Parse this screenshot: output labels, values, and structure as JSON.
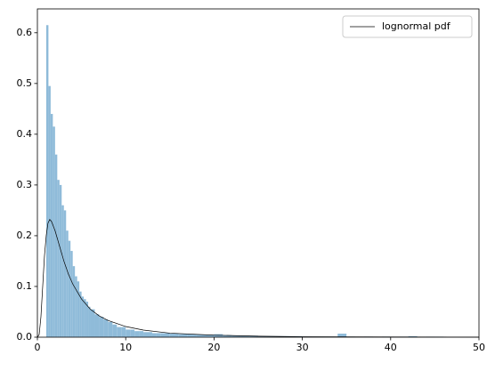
{
  "chart_data": {
    "type": "histogram",
    "bins": [
      1.0,
      1.25,
      1.5,
      1.75,
      2.0,
      2.25,
      2.5,
      2.75,
      3.0,
      3.25,
      3.5,
      3.75,
      4.0,
      4.25,
      4.5,
      4.75,
      5.0,
      5.25,
      5.5,
      5.75,
      6.0,
      6.5,
      7.0,
      7.5,
      8.0,
      8.5,
      9.0,
      9.5,
      10.0,
      10.5,
      11.0,
      11.5,
      12.0,
      12.5,
      13.0,
      13.5,
      14.0,
      15,
      16,
      17,
      18,
      19,
      20,
      21,
      22,
      23,
      24,
      25,
      26,
      27,
      28,
      29,
      30,
      31,
      32,
      33,
      34,
      35,
      36,
      37,
      38,
      39,
      40,
      41,
      42,
      43,
      44,
      45,
      46
    ],
    "values": [
      0.615,
      0.495,
      0.44,
      0.415,
      0.36,
      0.31,
      0.3,
      0.26,
      0.25,
      0.21,
      0.19,
      0.17,
      0.14,
      0.12,
      0.11,
      0.09,
      0.08,
      0.075,
      0.07,
      0.06,
      0.055,
      0.045,
      0.04,
      0.035,
      0.03,
      0.025,
      0.02,
      0.02,
      0.015,
      0.015,
      0.012,
      0.012,
      0.01,
      0.01,
      0.008,
      0.008,
      0.008,
      0.007,
      0.006,
      0.006,
      0.005,
      0.005,
      0.006,
      0.004,
      0.003,
      0.003,
      0.003,
      0.002,
      0.002,
      0.002,
      0.002,
      0.002,
      0.001,
      0.001,
      0.001,
      0.001,
      0.007,
      0.001,
      0,
      0.001,
      0,
      0.001,
      0,
      0.001,
      0.002,
      0,
      0.001,
      0.001
    ],
    "color": "#8fbbd9",
    "series": [
      {
        "name": "lognormal pdf",
        "type": "line",
        "color": "#000000",
        "x": [
          0,
          0.2,
          0.4,
          0.6,
          0.8,
          1.0,
          1.2,
          1.4,
          1.6,
          2,
          2.5,
          3,
          3.5,
          4,
          5,
          6,
          7,
          8,
          10,
          12,
          15,
          20,
          25,
          30,
          40,
          50
        ],
        "values": [
          0,
          0.005,
          0.04,
          0.1,
          0.16,
          0.2,
          0.225,
          0.232,
          0.228,
          0.21,
          0.18,
          0.15,
          0.125,
          0.105,
          0.075,
          0.055,
          0.042,
          0.033,
          0.021,
          0.014,
          0.008,
          0.004,
          0.002,
          0.001,
          0.0005,
          0.0002
        ]
      }
    ],
    "xlim": [
      0,
      50
    ],
    "ylim": [
      0,
      0.647
    ],
    "xticks": [
      0,
      10,
      20,
      30,
      40,
      50
    ],
    "yticks": [
      {
        "value": 0,
        "label": "0.0"
      },
      0.1,
      0.2,
      0.3,
      0.4,
      0.5,
      0.6
    ],
    "legend": "upper right"
  }
}
